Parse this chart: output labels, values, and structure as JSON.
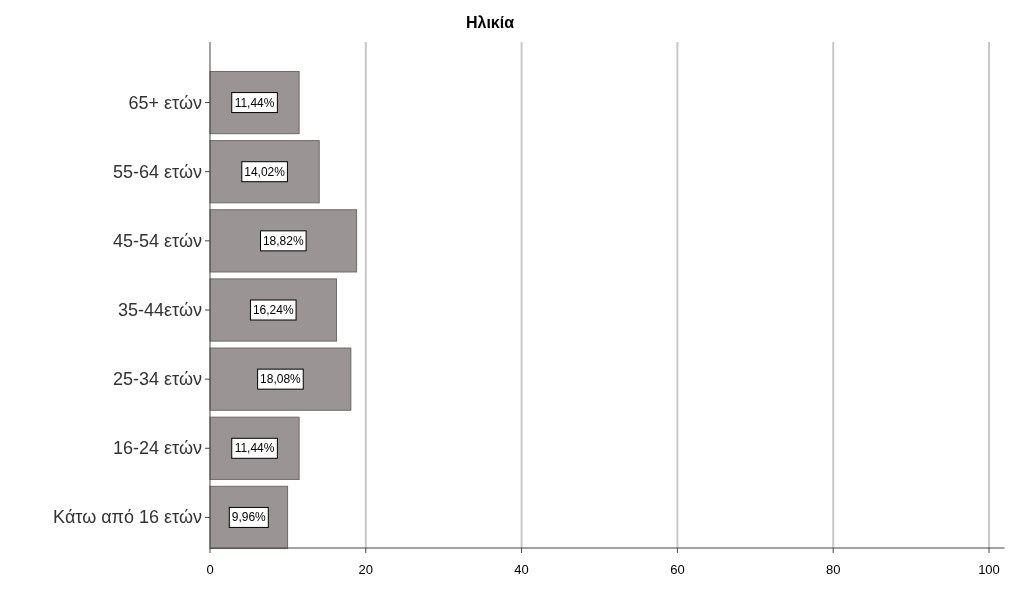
{
  "chart_data": {
    "type": "bar",
    "orientation": "horizontal",
    "title": "Ηλικία",
    "categories": [
      "65+ ετών",
      "55-64 ετών",
      "45-54 ετών",
      "35-44ετών",
      "25-34 ετών",
      "16-24 ετών",
      "Κάτω από 16 ετών"
    ],
    "values": [
      11.44,
      14.02,
      18.82,
      16.24,
      18.08,
      11.44,
      9.96
    ],
    "value_labels": [
      "11,44%",
      "14,02%",
      "18,82%",
      "16,24%",
      "18,08%",
      "11,44%",
      "9,96%"
    ],
    "color": "#9a9494",
    "xlim": [
      0,
      102
    ],
    "xticks": [
      0,
      20,
      40,
      60,
      80,
      100
    ],
    "grid": "x"
  }
}
